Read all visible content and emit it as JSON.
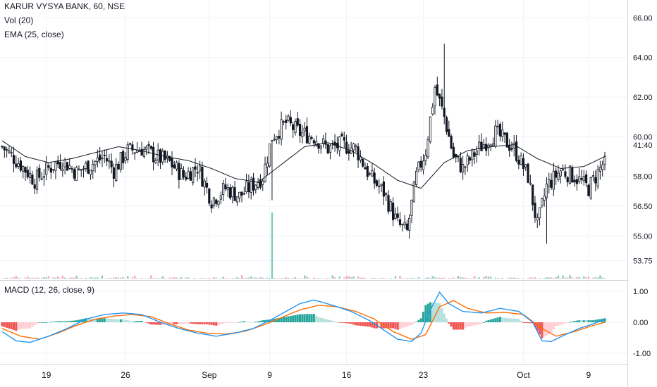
{
  "header": {
    "symbol": "KARUR VYSYA BANK, 60, NSE",
    "volume": "Vol (20)",
    "ema": "EMA (25, close)",
    "macd": "MACD (12, 26, close, 9)"
  },
  "last_price_label": "41:40",
  "colors": {
    "candle": "#131722",
    "ema": "#131722",
    "macd_line": "#2196f3",
    "signal_line": "#ff6d00",
    "hist_up_strong": "#26a69a",
    "hist_up_weak": "#b2dfdb",
    "hist_down_strong": "#ef5350",
    "hist_down_weak": "#ffcdd2",
    "vol_up": "#80cbc4",
    "vol_down": "#f8a5b5",
    "grid": "#f0f3fa",
    "axis_text": "#131722"
  },
  "chart_data": [
    {
      "type": "candlestick",
      "name": "price",
      "y_ticks": [
        "66.00",
        "64.00",
        "62.00",
        "60.00",
        "58.00",
        "56.50",
        "55.00",
        "53.75"
      ],
      "x_ticks": [
        "19",
        "26",
        "Sep",
        "9",
        "16",
        "23",
        "Oct",
        "9"
      ],
      "ylim": [
        53.2,
        66.4
      ],
      "anchors": [
        [
          0,
          59.5
        ],
        [
          8,
          58.6
        ],
        [
          14,
          57.8
        ],
        [
          20,
          58.4
        ],
        [
          26,
          58.8
        ],
        [
          32,
          58.2
        ],
        [
          38,
          58.6
        ],
        [
          44,
          59.0
        ],
        [
          48,
          58.3
        ],
        [
          54,
          59.3
        ],
        [
          60,
          59.4
        ],
        [
          66,
          59.0
        ],
        [
          72,
          58.7
        ],
        [
          78,
          58.0
        ],
        [
          84,
          58.5
        ],
        [
          90,
          56.8
        ],
        [
          96,
          57.4
        ],
        [
          102,
          57.0
        ],
        [
          108,
          57.6
        ],
        [
          112,
          58.0
        ],
        [
          116,
          60.0
        ],
        [
          122,
          60.7
        ],
        [
          128,
          60.2
        ],
        [
          134,
          60.0
        ],
        [
          140,
          59.4
        ],
        [
          146,
          59.6
        ],
        [
          152,
          59.4
        ],
        [
          158,
          58.0
        ],
        [
          164,
          57.2
        ],
        [
          170,
          55.6
        ],
        [
          174,
          55.2
        ],
        [
          178,
          58.0
        ],
        [
          182,
          59.3
        ],
        [
          186,
          62.5
        ],
        [
          190,
          61.0
        ],
        [
          194,
          59.0
        ],
        [
          198,
          58.4
        ],
        [
          204,
          59.3
        ],
        [
          212,
          60.2
        ],
        [
          220,
          59.4
        ],
        [
          226,
          58.0
        ],
        [
          230,
          55.5
        ],
        [
          234,
          57.5
        ],
        [
          240,
          58.3
        ],
        [
          246,
          58.0
        ],
        [
          252,
          57.4
        ],
        [
          258,
          58.6
        ]
      ],
      "count": 260
    },
    {
      "type": "line",
      "name": "EMA (25, close)",
      "x": [
        0,
        10,
        20,
        30,
        40,
        50,
        60,
        70,
        80,
        90,
        100,
        110,
        120,
        130,
        140,
        150,
        160,
        170,
        180,
        190,
        200,
        210,
        220,
        230,
        240,
        250,
        259
      ],
      "values": [
        59.8,
        59.0,
        58.7,
        58.9,
        59.2,
        59.5,
        59.3,
        59.0,
        58.8,
        58.4,
        57.9,
        57.7,
        58.6,
        59.5,
        59.7,
        59.3,
        58.6,
        57.8,
        57.4,
        58.7,
        59.3,
        59.5,
        59.6,
        58.9,
        58.4,
        58.5,
        59.0
      ]
    },
    {
      "type": "bar",
      "name": "Vol (20)",
      "spike_index": 116,
      "spike_height": 0.94
    },
    {
      "type": "histogram",
      "name": "MACD (12, 26, close, 9)",
      "y_ticks": [
        "1.00",
        "0.00",
        "-1.00"
      ],
      "ylim": [
        -1.25,
        1.25
      ],
      "macd_line": [
        [
          0,
          -0.3
        ],
        [
          6,
          -0.6
        ],
        [
          12,
          -0.65
        ],
        [
          20,
          -0.45
        ],
        [
          28,
          -0.2
        ],
        [
          36,
          0.1
        ],
        [
          44,
          0.25
        ],
        [
          52,
          0.3
        ],
        [
          60,
          0.25
        ],
        [
          68,
          0.0
        ],
        [
          76,
          -0.2
        ],
        [
          84,
          -0.35
        ],
        [
          92,
          -0.45
        ],
        [
          100,
          -0.35
        ],
        [
          108,
          -0.2
        ],
        [
          116,
          0.1
        ],
        [
          122,
          0.35
        ],
        [
          128,
          0.6
        ],
        [
          134,
          0.72
        ],
        [
          142,
          0.55
        ],
        [
          150,
          0.35
        ],
        [
          158,
          0.05
        ],
        [
          164,
          -0.25
        ],
        [
          170,
          -0.55
        ],
        [
          176,
          -0.62
        ],
        [
          180,
          -0.35
        ],
        [
          184,
          0.4
        ],
        [
          188,
          0.97
        ],
        [
          192,
          0.6
        ],
        [
          198,
          0.35
        ],
        [
          206,
          0.3
        ],
        [
          214,
          0.45
        ],
        [
          222,
          0.35
        ],
        [
          228,
          0.0
        ],
        [
          232,
          -0.6
        ],
        [
          236,
          -0.62
        ],
        [
          242,
          -0.4
        ],
        [
          248,
          -0.2
        ],
        [
          254,
          -0.05
        ],
        [
          259,
          0.1
        ]
      ],
      "signal_line": [
        [
          0,
          -0.2
        ],
        [
          8,
          -0.45
        ],
        [
          16,
          -0.55
        ],
        [
          24,
          -0.35
        ],
        [
          32,
          -0.1
        ],
        [
          40,
          0.1
        ],
        [
          48,
          0.2
        ],
        [
          56,
          0.25
        ],
        [
          64,
          0.18
        ],
        [
          72,
          -0.05
        ],
        [
          80,
          -0.25
        ],
        [
          88,
          -0.35
        ],
        [
          96,
          -0.38
        ],
        [
          104,
          -0.3
        ],
        [
          112,
          -0.1
        ],
        [
          120,
          0.15
        ],
        [
          128,
          0.4
        ],
        [
          136,
          0.55
        ],
        [
          144,
          0.5
        ],
        [
          152,
          0.35
        ],
        [
          160,
          0.1
        ],
        [
          168,
          -0.3
        ],
        [
          176,
          -0.55
        ],
        [
          182,
          -0.4
        ],
        [
          188,
          0.5
        ],
        [
          194,
          0.7
        ],
        [
          200,
          0.45
        ],
        [
          208,
          0.3
        ],
        [
          216,
          0.32
        ],
        [
          224,
          0.25
        ],
        [
          232,
          -0.2
        ],
        [
          238,
          -0.45
        ],
        [
          246,
          -0.3
        ],
        [
          254,
          -0.1
        ],
        [
          259,
          0.0
        ]
      ]
    }
  ]
}
